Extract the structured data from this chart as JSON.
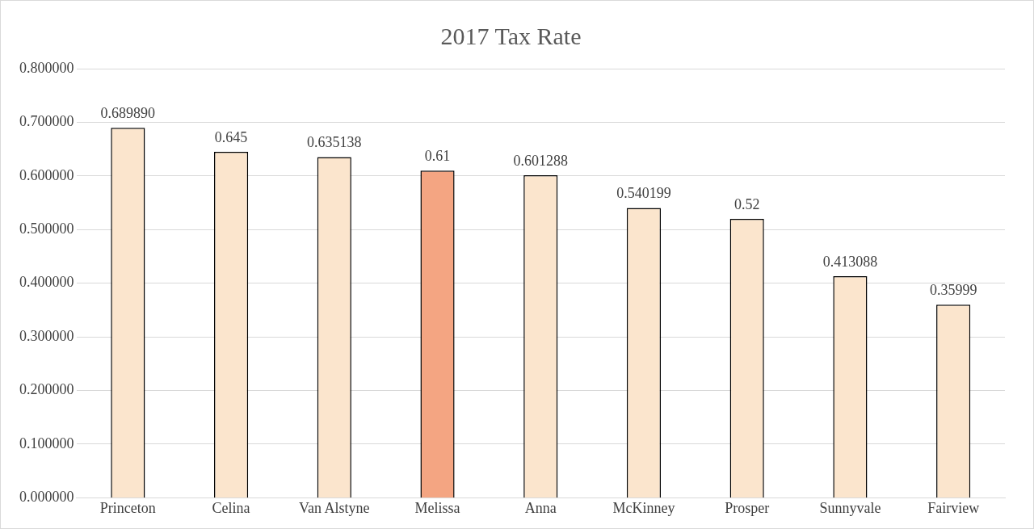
{
  "chart_data": {
    "type": "bar",
    "title": "2017 Tax Rate",
    "categories": [
      "Princeton",
      "Celina",
      "Van Alstyne",
      "Melissa",
      "Anna",
      "McKinney",
      "Prosper",
      "Sunnyvale",
      "Fairview"
    ],
    "values": [
      0.68989,
      0.645,
      0.635138,
      0.61,
      0.601288,
      0.540199,
      0.52,
      0.413088,
      0.35999
    ],
    "value_labels": [
      "0.689890",
      "0.645",
      "0.635138",
      "0.61",
      "0.601288",
      "0.540199",
      "0.52",
      "0.413088",
      "0.35999"
    ],
    "colors": [
      "#fbe5cd",
      "#fbe5cd",
      "#fbe5cd",
      "#f4a582",
      "#fbe5cd",
      "#fbe5cd",
      "#fbe5cd",
      "#fbe5cd",
      "#fbe5cd"
    ],
    "ylim": [
      0,
      0.8
    ],
    "yticks": [
      {
        "value": 0,
        "label": "0.000000"
      },
      {
        "value": 0.1,
        "label": "0.100000"
      },
      {
        "value": 0.2,
        "label": "0.200000"
      },
      {
        "value": 0.3,
        "label": "0.300000"
      },
      {
        "value": 0.4,
        "label": "0.400000"
      },
      {
        "value": 0.5,
        "label": "0.500000"
      },
      {
        "value": 0.6,
        "label": "0.600000"
      },
      {
        "value": 0.7,
        "label": "0.700000"
      },
      {
        "value": 0.8,
        "label": "0.800000"
      }
    ],
    "grid": "y",
    "legend": false
  }
}
